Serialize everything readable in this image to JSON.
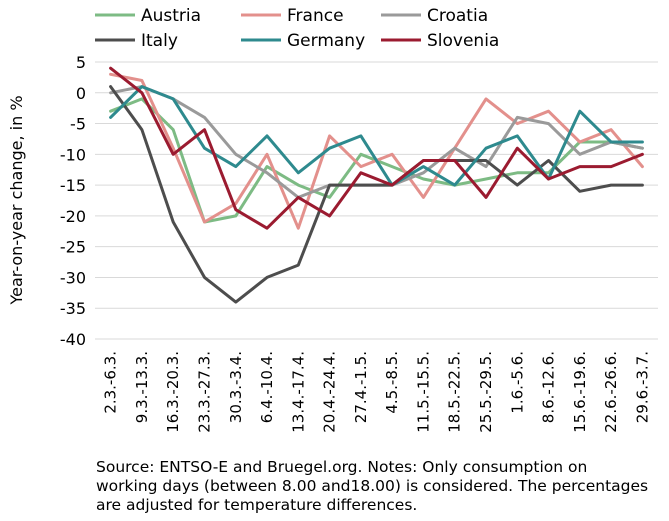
{
  "chart_data": {
    "type": "line",
    "title": "",
    "xlabel": "",
    "ylabel": "Year-on-year change, in %",
    "ylim": [
      -40,
      5
    ],
    "yticks": [
      5,
      0,
      -5,
      -10,
      -15,
      -20,
      -25,
      -30,
      -35,
      -40
    ],
    "grid": "horizontal",
    "legend_position": "top",
    "categories": [
      "2.3.-6.3.",
      "9.3.-13.3.",
      "16.3.-20.3.",
      "23.3.-27.3.",
      "30.3.-3.4.",
      "6.4.-10.4.",
      "13.4.-17.4.",
      "20.4.-24.4.",
      "27.4.-1.5.",
      "4.5.-8.5.",
      "11.5.-15.5.",
      "18.5.-22.5.",
      "25.5.-29.5.",
      "1.6.-5.6.",
      "8.6.-12.6.",
      "15.6.-19.6.",
      "22.6.-26.6.",
      "29.6.-3.7."
    ],
    "series": [
      {
        "name": "Austria",
        "color": "#7dbb84",
        "values": [
          -3,
          -1,
          -6,
          -21,
          -20,
          -12,
          -15,
          -17,
          -10,
          -12,
          -14,
          -15,
          -14,
          -13,
          -13,
          -8,
          -8,
          -9
        ]
      },
      {
        "name": "France",
        "color": "#e3908c",
        "values": [
          3,
          2,
          -9,
          -21,
          -18,
          -10,
          -22,
          -7,
          -12,
          -10,
          -17,
          -9,
          -1,
          -5,
          -3,
          -8,
          -6,
          -12
        ]
      },
      {
        "name": "Croatia",
        "color": "#9a9a9a",
        "values": [
          0,
          1,
          -1,
          -4,
          -10,
          -13,
          -17,
          -15,
          -15,
          -15,
          -13,
          -9,
          -12,
          -4,
          -5,
          -10,
          -8,
          -9
        ]
      },
      {
        "name": "Italy",
        "color": "#4d4d4d",
        "values": [
          1,
          -6,
          -21,
          -30,
          -34,
          -30,
          -28,
          -15,
          -15,
          -15,
          -11,
          -11,
          -11,
          -15,
          -11,
          -16,
          -15,
          -15
        ]
      },
      {
        "name": "Germany",
        "color": "#2e8a8e",
        "values": [
          -4,
          1,
          -1,
          -9,
          -12,
          -7,
          -13,
          -9,
          -7,
          -15,
          -12,
          -15,
          -9,
          -7,
          -14,
          -3,
          -8,
          -8
        ]
      },
      {
        "name": "Slovenia",
        "color": "#9b1b30",
        "values": [
          4,
          0,
          -10,
          -6,
          -19,
          -22,
          -17,
          -20,
          -13,
          -15,
          -11,
          -11,
          -17,
          -9,
          -14,
          -12,
          -12,
          -10
        ]
      }
    ]
  },
  "note": {
    "line1": "Source: ENTSO-E and Bruegel.org. Notes: Only consumption on",
    "line2": "working days (between 8.00 and18.00) is considered. The percentages",
    "line3": "are adjusted for temperature differences."
  }
}
